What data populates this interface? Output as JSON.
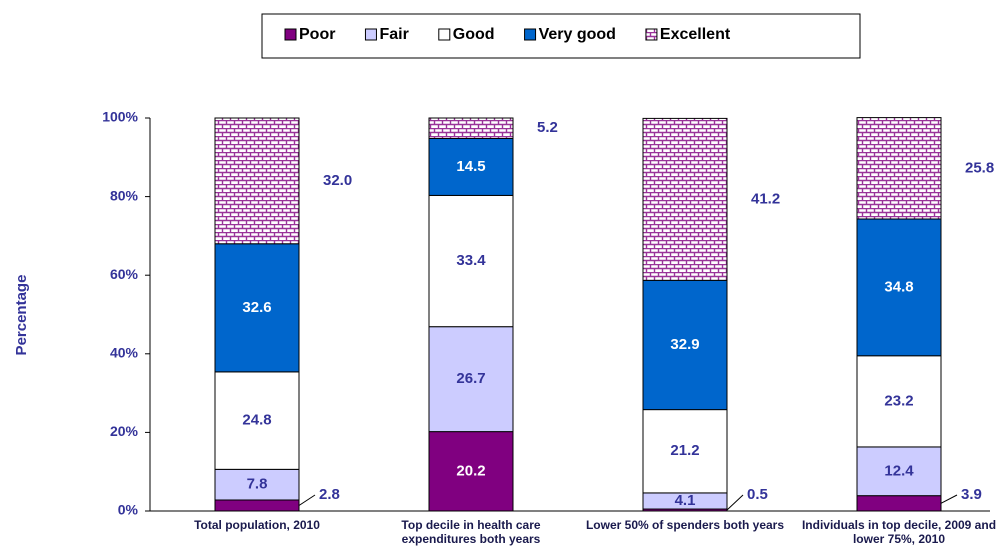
{
  "chart_data": {
    "type": "stacked_bar",
    "y_label": "Percentage",
    "categories": [
      "Total population, 2010",
      "Top decile in health care expenditures both years",
      "Lower 50% of spenders both years",
      "Individuals in top decile, 2009 and lower 75%, 2010"
    ],
    "series": [
      {
        "name": "Poor",
        "color": "#800080",
        "values": [
          2.8,
          20.2,
          0.5,
          3.9
        ],
        "value_labels": [
          "2.8",
          "20.2",
          "0.5",
          "3.9"
        ]
      },
      {
        "name": "Fair",
        "color": "#ccccff",
        "values": [
          7.8,
          26.7,
          4.1,
          12.4
        ],
        "value_labels": [
          "7.8",
          "26.7",
          "4.1",
          "12.4"
        ]
      },
      {
        "name": "Good",
        "color": "#ffffff",
        "values": [
          24.8,
          33.4,
          21.2,
          23.2
        ],
        "value_labels": [
          "24.8",
          "33.4",
          "21.2",
          "23.2"
        ]
      },
      {
        "name": "Very good",
        "color": "#0066cc",
        "values": [
          32.6,
          14.5,
          32.9,
          34.8
        ],
        "value_labels": [
          "32.6",
          "14.5",
          "32.9",
          "34.8"
        ]
      },
      {
        "name": "Excellent",
        "color": "#993399",
        "pattern": "brick",
        "values": [
          32.0,
          5.2,
          41.2,
          25.8
        ],
        "value_labels": [
          "32.0",
          "5.2",
          "41.2",
          "25.8"
        ]
      }
    ],
    "ylim": [
      0,
      100
    ],
    "yticks": [
      {
        "value": 0,
        "label": "0%"
      },
      {
        "value": 20,
        "label": "20%"
      },
      {
        "value": 40,
        "label": "40%"
      },
      {
        "value": 60,
        "label": "60%"
      },
      {
        "value": 80,
        "label": "80%"
      },
      {
        "value": 100,
        "label": "100%"
      }
    ],
    "legend": "top"
  }
}
